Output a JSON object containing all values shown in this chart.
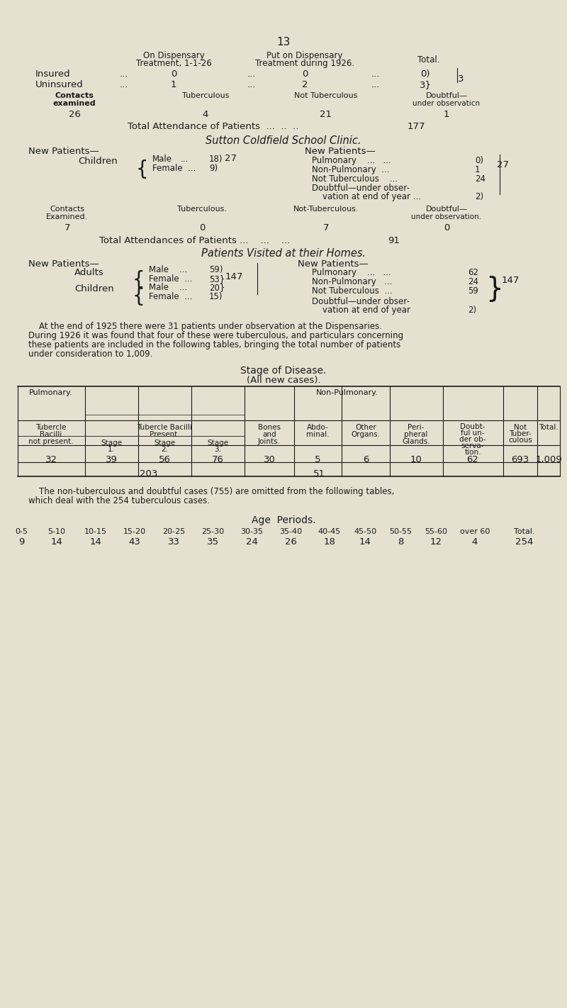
{
  "bg_color": "#e5e0d0",
  "page_number": "13",
  "insured_disp": "0",
  "insured_put": "0",
  "uninsured_disp": "1",
  "uninsured_put": "2",
  "contacts_examined": "26",
  "tuberculous": "4",
  "not_tuberculous": "21",
  "doubtful_obs": "1",
  "total_attendance": "177",
  "sutton_title": "Sutton Coldfield School Clinic.",
  "children_male": "18",
  "children_female": "9",
  "children_total": "27",
  "pulmonary_school": "0",
  "non_pulmonary_school": "1",
  "not_tuberculous_school": "24",
  "doubtful_school": "2",
  "school_right_total": "27",
  "contacts_examined_school": "7",
  "tuberculous_school": "0",
  "not_tuberculous_school2": "7",
  "doubtful_school2": "0",
  "total_attendances_school": "91",
  "adults_male": "59",
  "adults_female": "53",
  "children_male2": "20",
  "children_female2": "15",
  "home_total": "147",
  "pulmonary_home": "62",
  "non_pulmonary_home": "24",
  "not_tuberculous_home": "59",
  "doubtful_home": "2",
  "home_right_total": "147",
  "paragraph1_line1": "At the end of 1925 there were 31 patients under observation at the Dispensaries.",
  "paragraph1_line2": "During 1926 it was found that four of these were tuberculous, and particulars concerning",
  "paragraph1_line3": "these patients are included in the following tables, bringing the total number of patients",
  "paragraph1_line4": "under consideration to 1,009.",
  "stage_title": "Stage of Disease.",
  "stage_subtitle": "(All new cases).",
  "table_data": [
    "32",
    "39",
    "56",
    "76",
    "30",
    "5",
    "6",
    "10",
    "62",
    "693",
    "1,009"
  ],
  "pulmonary_subtotal": "203",
  "non_pulmonary_subtotal": "51",
  "paragraph2_line1": "The non-tuberculous and doubtful cases (755) are omitted from the following tables,",
  "paragraph2_line2": "which deal with the 254 tuberculous cases.",
  "age_title": "Age  Periods.",
  "age_periods": [
    "0-5",
    "5-10",
    "10-15",
    "15-20",
    "20-25",
    "25-30",
    "30-35",
    "35-40",
    "40-45",
    "45-50",
    "50-55",
    "55-60",
    "over 60",
    "Total."
  ],
  "age_values": [
    "9",
    "14",
    "14",
    "43",
    "33",
    "35",
    "24",
    "26",
    "18",
    "14",
    "8",
    "12",
    "4",
    "254"
  ]
}
